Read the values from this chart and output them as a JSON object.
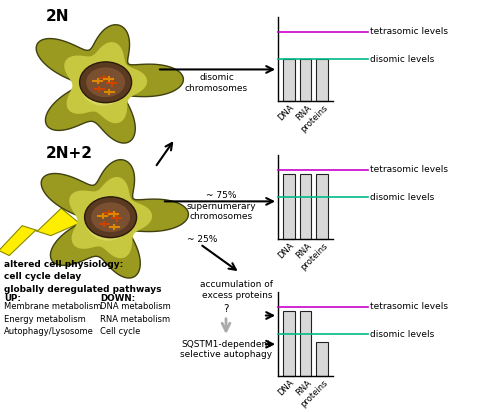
{
  "bg_color": "#ffffff",
  "magenta": "#cc00cc",
  "cyan": "#00bb88",
  "bar_color": "#d8d8d8",
  "bar_edge": "#222222",
  "chart1": {
    "bars": [
      1.0,
      1.0,
      1.0
    ],
    "disomic": 1.0,
    "tetrasomic": 1.65,
    "xticks": [
      "DNA",
      "RNA",
      "proteins"
    ]
  },
  "chart2": {
    "bars": [
      1.55,
      1.55,
      1.55
    ],
    "disomic": 1.0,
    "tetrasomic": 1.65,
    "xticks": [
      "DNA",
      "RNA",
      "proteins"
    ]
  },
  "chart3": {
    "bars": [
      1.55,
      1.55,
      0.82
    ],
    "disomic": 1.0,
    "tetrasomic": 1.65,
    "xticks": [
      "DNA",
      "RNA",
      "proteins"
    ]
  },
  "cell1_label": "2N",
  "cell2_label": "2N+2",
  "arrow1_label": "disomic\nchromosomes",
  "arrow2_label": "~ 75%\nsupernumerary\nchromosomes",
  "arrow3_label": "~ 25%",
  "accum_text": "accumulation of\nexcess proteins",
  "question_text": "?",
  "sqstm_text": "SQSTM1-dependent\nselective autophagy",
  "tetrasomic_label": "tetrasomic levels",
  "disomic_label": "disomic levels",
  "bold_text": "altered cell physiology:\ncell cycle delay\nglobally deregulated pathways",
  "up_header": "UP:",
  "down_header": "DOWN:",
  "up_items": "Membrane metabolism\nEnergy metabolism\nAutophagy/Lysosome",
  "down_items": "DNA metabolism\nRNA metabolism\nCell cycle"
}
